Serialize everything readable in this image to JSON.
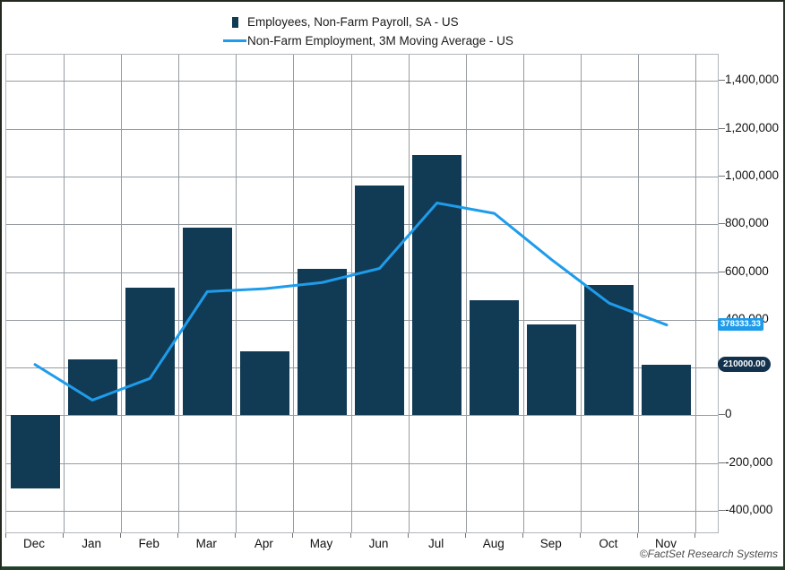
{
  "legend": {
    "items": [
      {
        "label": "Employees, Non-Farm Payroll, SA - US"
      },
      {
        "label": "Non-Farm Employment, 3M Moving Average - US"
      }
    ]
  },
  "axes": {
    "y_ticks": [
      {
        "value": 1400000,
        "label": "1,400,000"
      },
      {
        "value": 1200000,
        "label": "1,200,000"
      },
      {
        "value": 1000000,
        "label": "1,000,000"
      },
      {
        "value": 800000,
        "label": "800,000"
      },
      {
        "value": 600000,
        "label": "600,000"
      },
      {
        "value": 400000,
        "label": "400,000"
      },
      {
        "value": 200000,
        "label": "200,000"
      },
      {
        "value": 0,
        "label": "0"
      },
      {
        "value": -200000,
        "label": "-200,000"
      },
      {
        "value": -400000,
        "label": "-400,000"
      }
    ]
  },
  "value_badges": {
    "line": {
      "text": "378333.33",
      "value": 378333.33,
      "bg": "#1e9ceb"
    },
    "bar": {
      "text": "210000.00",
      "value": 210000.0,
      "bg": "#12314d"
    }
  },
  "footer": {
    "copyright": "©FactSet Research Systems"
  },
  "colors": {
    "bar": "#113a54",
    "line": "#1e9ceb",
    "grid": "#969ca1"
  },
  "chart_data": {
    "type": "bar",
    "categories": [
      "Dec",
      "Jan",
      "Feb",
      "Mar",
      "Apr",
      "May",
      "Jun",
      "Jul",
      "Aug",
      "Sep",
      "Oct",
      "Nov"
    ],
    "series": [
      {
        "name": "Employees, Non-Farm Payroll, SA - US",
        "type": "bar",
        "color": "#113a54",
        "values": [
          -306000,
          233000,
          536000,
          785000,
          269000,
          614000,
          962000,
          1091000,
          483000,
          379000,
          546000,
          210000
        ]
      },
      {
        "name": "Non-Farm Employment, 3M Moving Average - US",
        "type": "line",
        "color": "#1e9ceb",
        "values": [
          212666.67,
          63666.67,
          154333.33,
          518000,
          530000,
          556000,
          615000,
          889000,
          845333.33,
          651000,
          469333.33,
          378333.33
        ]
      }
    ],
    "ylabel": "",
    "xlabel": "",
    "ylim": [
      -490000,
      1510000
    ],
    "grid": true,
    "legend_position": "top-center",
    "y_axis_side": "right"
  }
}
